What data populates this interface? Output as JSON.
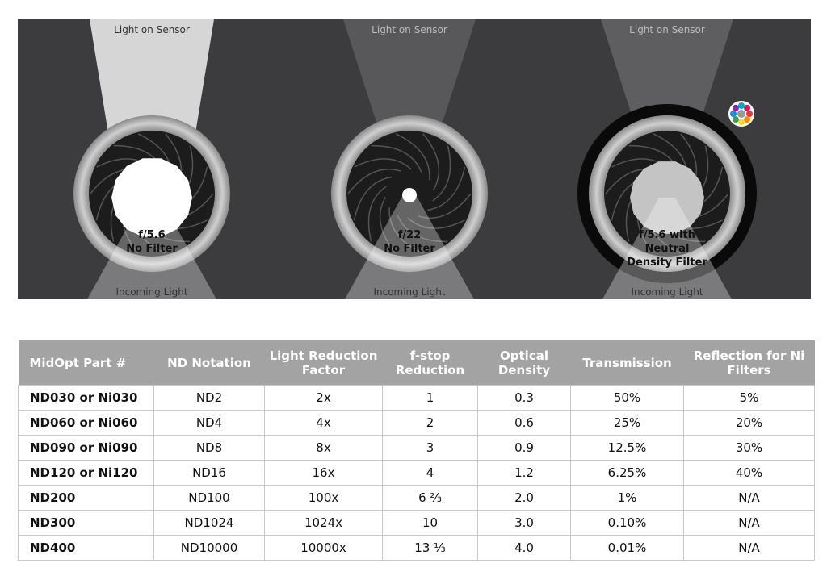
{
  "panels": [
    {
      "top_label": "Light on Sensor",
      "bottom_label": "Incoming Light",
      "aperture_label": [
        "f/5.6",
        "No Filter"
      ]
    },
    {
      "top_label": "Light on Sensor",
      "bottom_label": "Incoming Light",
      "aperture_label": [
        "f/22",
        "No Filter"
      ]
    },
    {
      "top_label": "Light on Sensor",
      "bottom_label": "Incoming Light",
      "aperture_label": [
        "f/5.6 with",
        "Neutral",
        "Density Filter"
      ]
    }
  ],
  "table": {
    "header": [
      "MidOpt Part #",
      "ND Notation",
      "Light Reduction Factor",
      "f-stop Reduction",
      "Optical Density",
      "Transmission",
      "Reflection for Ni Filters"
    ],
    "rows": [
      [
        "ND030 or Ni030",
        "ND2",
        "2x",
        "1",
        "0.3",
        "50%",
        "5%"
      ],
      [
        "ND060 or Ni060",
        "ND4",
        "4x",
        "2",
        "0.6",
        "25%",
        "20%"
      ],
      [
        "ND090 or Ni090",
        "ND8",
        "8x",
        "3",
        "0.9",
        "12.5%",
        "30%"
      ],
      [
        "ND120 or Ni120",
        "ND16",
        "16x",
        "4",
        "1.2",
        "6.25%",
        "40%"
      ],
      [
        "ND200",
        "ND100",
        "100x",
        "6 ⅔",
        "2.0",
        "1%",
        "N/A"
      ],
      [
        "ND300",
        "ND1024",
        "1024x",
        "10",
        "3.0",
        "0.10%",
        "N/A"
      ],
      [
        "ND400",
        "ND10000",
        "10000x",
        "13 ⅓",
        "4.0",
        "0.01%",
        "N/A"
      ]
    ]
  }
}
